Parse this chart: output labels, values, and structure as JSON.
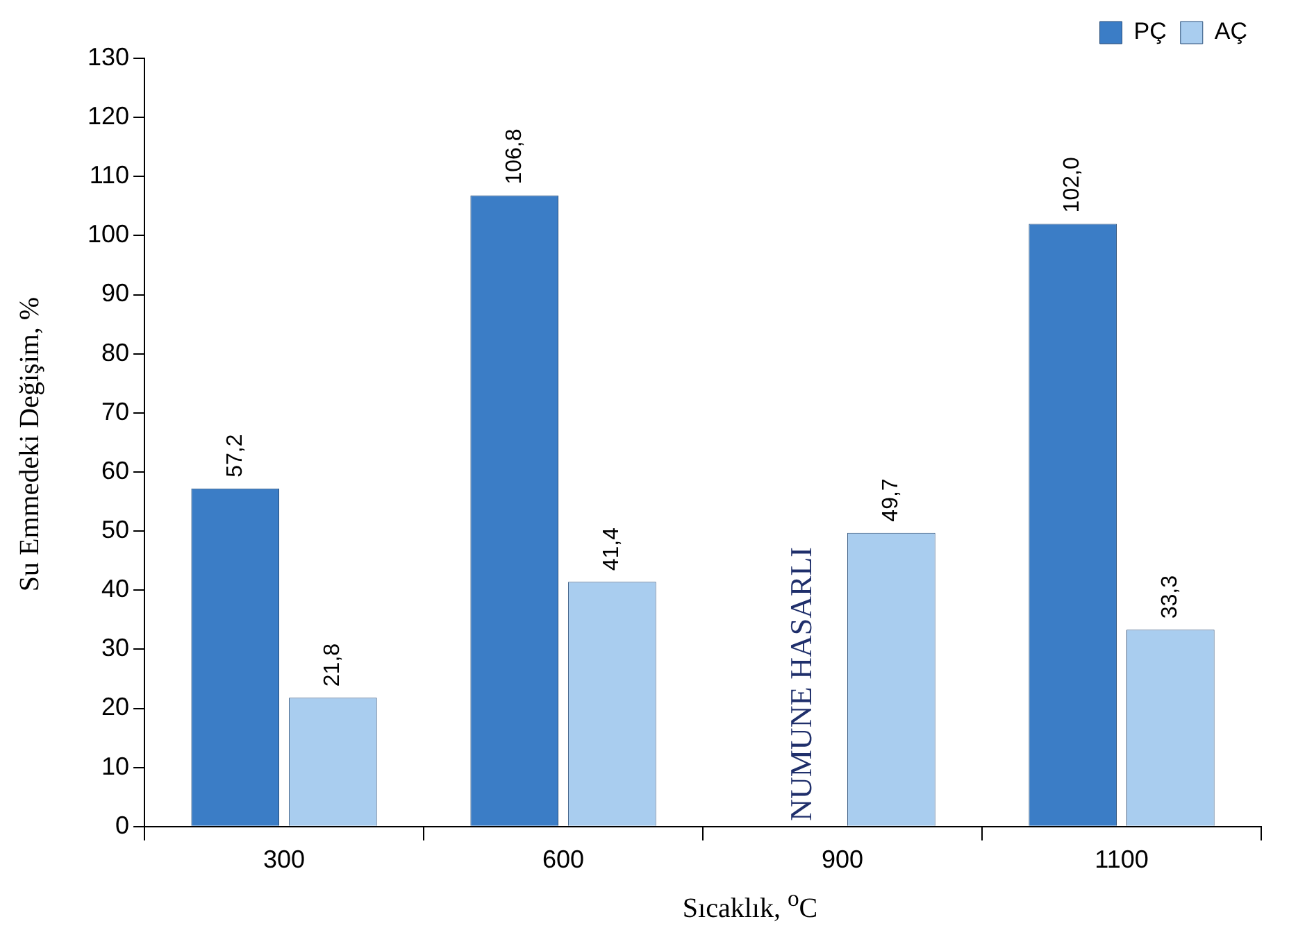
{
  "chart_data": {
    "type": "bar",
    "xlabel": "Sıcaklık, $^{o}$C",
    "ylabel": "Su Emmedeki Değişim, %",
    "categories": [
      "300",
      "600",
      "900",
      "1100"
    ],
    "series": [
      {
        "name": "PÇ",
        "color": "#3b7dc6",
        "values": [
          57.2,
          106.8,
          null,
          102.0
        ],
        "value_labels": [
          "57,2",
          "106,8",
          null,
          "102,0"
        ]
      },
      {
        "name": "AÇ",
        "color": "#a9cdef",
        "values": [
          21.8,
          41.4,
          49.7,
          33.3
        ],
        "value_labels": [
          "21,8",
          "41,4",
          "49,7",
          "33,3"
        ]
      }
    ],
    "annotations": [
      {
        "text": "NUMUNE HASARLI",
        "x": "900",
        "y": 0
      }
    ],
    "ylim": [
      0,
      130
    ],
    "yticks": [
      0,
      10,
      20,
      30,
      40,
      50,
      60,
      70,
      80,
      90,
      100,
      110,
      120,
      130
    ],
    "grid": false,
    "legend": "top right"
  }
}
